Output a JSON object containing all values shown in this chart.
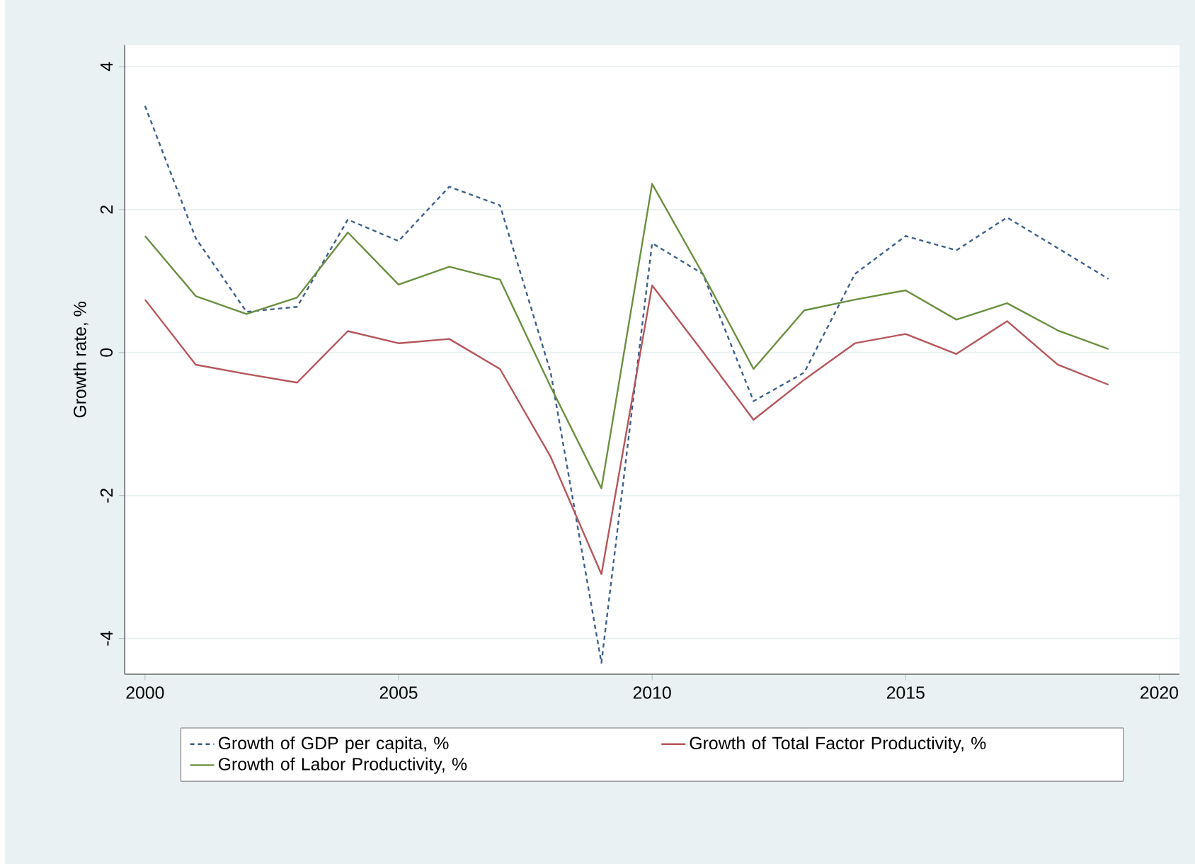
{
  "chart_data": {
    "type": "line",
    "ylabel": "Growth rate, %",
    "x": [
      2000,
      2001,
      2002,
      2003,
      2004,
      2005,
      2006,
      2007,
      2008,
      2009,
      2010,
      2011,
      2012,
      2013,
      2014,
      2015,
      2016,
      2017,
      2018,
      2019
    ],
    "series": [
      {
        "name": "Growth of GDP per capita, %",
        "color": "#3d5f8c",
        "line_style": "dashed",
        "values": [
          3.45,
          1.6,
          0.57,
          0.64,
          1.86,
          1.56,
          2.32,
          2.06,
          -0.28,
          -4.34,
          1.53,
          1.1,
          -0.68,
          -0.28,
          1.1,
          1.63,
          1.43,
          1.89,
          1.46,
          1.03
        ]
      },
      {
        "name": "Growth of Total Factor Productivity, %",
        "color": "#b5555a",
        "line_style": "solid",
        "values": [
          0.74,
          -0.17,
          -0.3,
          -0.42,
          0.3,
          0.13,
          0.19,
          -0.23,
          -1.46,
          -3.1,
          0.94,
          0.01,
          -0.94,
          -0.38,
          0.13,
          0.26,
          -0.02,
          0.44,
          -0.17,
          -0.45
        ]
      },
      {
        "name": "Growth of Labor Productivity, %",
        "color": "#6a8f3f",
        "line_style": "solid",
        "values": [
          1.63,
          0.79,
          0.54,
          0.77,
          1.68,
          0.95,
          1.2,
          1.02,
          -0.48,
          -1.9,
          2.36,
          1.1,
          -0.23,
          0.59,
          0.74,
          0.87,
          0.46,
          0.69,
          0.31,
          0.05
        ]
      }
    ],
    "xlim": [
      1999.6,
      2020.4
    ],
    "ylim": [
      -4.5,
      4.3
    ],
    "xticks": [
      2000,
      2005,
      2010,
      2015,
      2020
    ],
    "yticks": [
      -4,
      -2,
      0,
      2,
      4
    ],
    "grid": "y",
    "legend": "bottom",
    "marker": "none"
  }
}
